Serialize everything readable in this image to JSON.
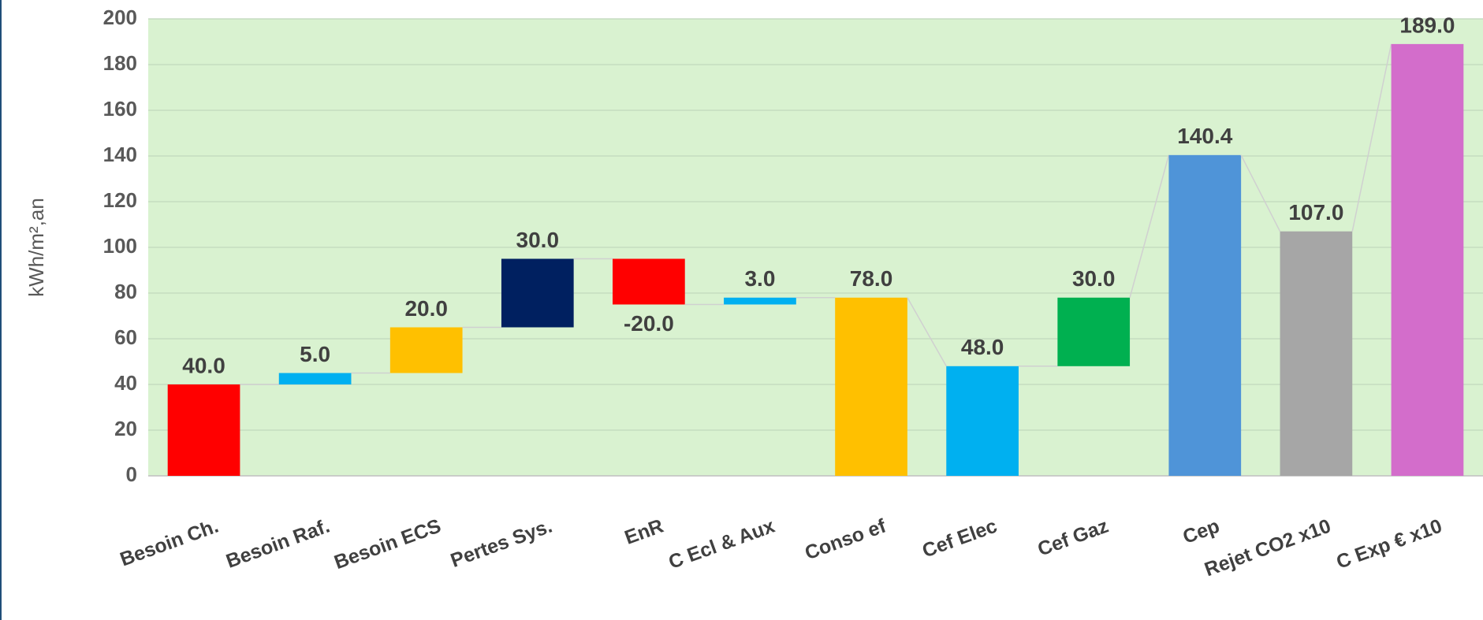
{
  "chart_data": {
    "type": "waterfall",
    "y_label": "kWh/m²,an",
    "categories": [
      "Besoin Ch.",
      "Besoin Raf.",
      "Besoin ECS",
      "Pertes Sys.",
      "EnR",
      "C Ecl & Aux",
      "Conso ef",
      "Cef Elec",
      "Cef Gaz",
      "Cep",
      "Rejet CO2 x10",
      "C Exp € x10"
    ],
    "values": [
      40,
      5,
      20,
      30,
      -20,
      3,
      78,
      48,
      30,
      140.4,
      107,
      189
    ],
    "value_labels": [
      "40.0",
      "5.0",
      "20.0",
      "30.0",
      "-20.0",
      "3.0",
      "78.0",
      "48.0",
      "30.0",
      "140.4",
      "107.0",
      "189.0"
    ],
    "is_total": [
      false,
      false,
      false,
      false,
      false,
      false,
      true,
      true,
      false,
      true,
      true,
      true
    ],
    "colors": [
      "#ff0000",
      "#00b0f0",
      "#ffc000",
      "#002060",
      "#ff0000",
      "#00b0f0",
      "#ffc000",
      "#00b0f0",
      "#00b050",
      "#4f94d8",
      "#a6a6a6",
      "#d36dcb"
    ],
    "ylim": [
      0,
      200
    ],
    "yticks": [
      0,
      20,
      40,
      60,
      80,
      100,
      120,
      140,
      160,
      180,
      200
    ],
    "grid": true
  }
}
